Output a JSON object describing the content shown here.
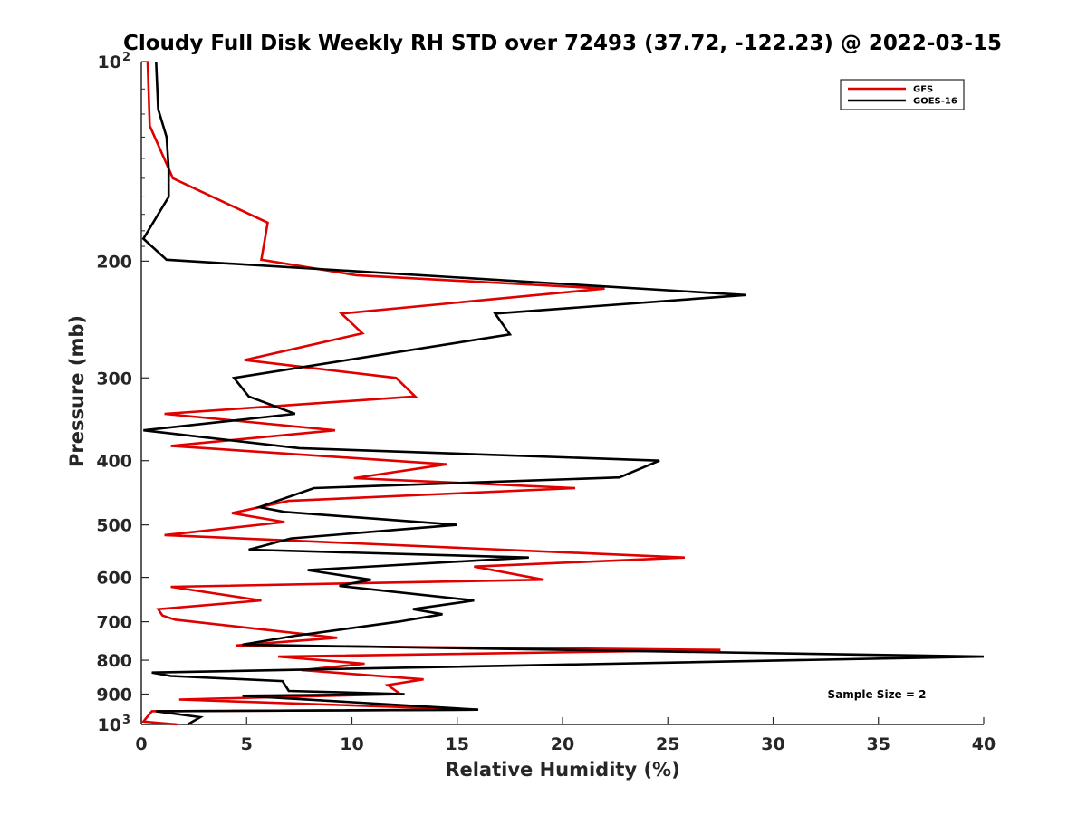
{
  "chart_data": {
    "type": "line",
    "title": "Cloudy Full Disk Weekly RH STD over 72493 (37.72, -122.23) @ 2022-03-15",
    "xlabel": "Relative Humidity (%)",
    "ylabel": "Pressure (mb)",
    "xlim": [
      0,
      40
    ],
    "ylim": [
      100,
      1000
    ],
    "y_scale": "log",
    "y_reversed": true,
    "x_ticks": [
      "0",
      "5",
      "10",
      "15",
      "20",
      "25",
      "30",
      "35",
      "40"
    ],
    "y_ticks": [
      {
        "value": 100,
        "label": "10",
        "sup": "2"
      },
      {
        "value": 200,
        "label": "200",
        "sup": ""
      },
      {
        "value": 300,
        "label": "300",
        "sup": ""
      },
      {
        "value": 400,
        "label": "400",
        "sup": ""
      },
      {
        "value": 500,
        "label": "500",
        "sup": ""
      },
      {
        "value": 600,
        "label": "600",
        "sup": ""
      },
      {
        "value": 700,
        "label": "700",
        "sup": ""
      },
      {
        "value": 800,
        "label": "800",
        "sup": ""
      },
      {
        "value": 900,
        "label": "900",
        "sup": ""
      },
      {
        "value": 1000,
        "label": "10",
        "sup": "3"
      }
    ],
    "legend_position": "top-right",
    "annotation": "Sample Size = 2",
    "series": [
      {
        "name": "GFS",
        "color": "#e00000",
        "points": [
          [
            0.3,
            100
          ],
          [
            0.4,
            125
          ],
          [
            1.5,
            150
          ],
          [
            6.0,
            175
          ],
          [
            5.7,
            199
          ],
          [
            10.2,
            210
          ],
          [
            22.0,
            220
          ],
          [
            9.5,
            240
          ],
          [
            10.5,
            257
          ],
          [
            4.9,
            282
          ],
          [
            12.1,
            300
          ],
          [
            13.0,
            320
          ],
          [
            1.1,
            340
          ],
          [
            9.2,
            360
          ],
          [
            1.4,
            380
          ],
          [
            14.5,
            405
          ],
          [
            10.1,
            425
          ],
          [
            20.6,
            440
          ],
          [
            7.0,
            460
          ],
          [
            4.3,
            480
          ],
          [
            6.8,
            495
          ],
          [
            1.1,
            518
          ],
          [
            25.8,
            560
          ],
          [
            15.8,
            578
          ],
          [
            19.1,
            605
          ],
          [
            1.4,
            620
          ],
          [
            5.7,
            650
          ],
          [
            0.8,
            670
          ],
          [
            1.0,
            685
          ],
          [
            1.6,
            695
          ],
          [
            9.3,
            740
          ],
          [
            4.5,
            760
          ],
          [
            27.5,
            772
          ],
          [
            6.5,
            790
          ],
          [
            10.6,
            810
          ],
          [
            7.6,
            828
          ],
          [
            13.4,
            855
          ],
          [
            11.7,
            872
          ],
          [
            12.3,
            900
          ],
          [
            1.8,
            917
          ],
          [
            16.0,
            950
          ],
          [
            0.5,
            955
          ],
          [
            0.1,
            990
          ],
          [
            1.7,
            1000
          ]
        ]
      },
      {
        "name": "GOES-16",
        "color": "#000000",
        "points": [
          [
            0.7,
            100
          ],
          [
            0.8,
            118
          ],
          [
            1.2,
            130
          ],
          [
            1.3,
            145
          ],
          [
            1.3,
            160
          ],
          [
            0.1,
            185
          ],
          [
            1.2,
            199
          ],
          [
            28.7,
            225
          ],
          [
            16.8,
            240
          ],
          [
            17.5,
            258
          ],
          [
            4.4,
            300
          ],
          [
            5.1,
            320
          ],
          [
            7.3,
            340
          ],
          [
            0.1,
            360
          ],
          [
            7.5,
            383
          ],
          [
            24.6,
            400
          ],
          [
            22.7,
            424
          ],
          [
            8.2,
            440
          ],
          [
            5.6,
            470
          ],
          [
            6.8,
            478
          ],
          [
            15.0,
            500
          ],
          [
            7.1,
            524
          ],
          [
            5.1,
            545
          ],
          [
            18.4,
            560
          ],
          [
            7.9,
            585
          ],
          [
            10.9,
            605
          ],
          [
            9.4,
            618
          ],
          [
            15.8,
            650
          ],
          [
            12.9,
            670
          ],
          [
            14.3,
            682
          ],
          [
            12.2,
            700
          ],
          [
            7.3,
            735
          ],
          [
            4.8,
            758
          ],
          [
            40.0,
            790
          ],
          [
            0.5,
            835
          ],
          [
            1.4,
            845
          ],
          [
            6.7,
            860
          ],
          [
            7.0,
            890
          ],
          [
            12.5,
            900
          ],
          [
            4.8,
            905
          ],
          [
            16.0,
            950
          ],
          [
            0.7,
            955
          ],
          [
            2.8,
            975
          ],
          [
            2.2,
            1000
          ]
        ]
      }
    ]
  }
}
